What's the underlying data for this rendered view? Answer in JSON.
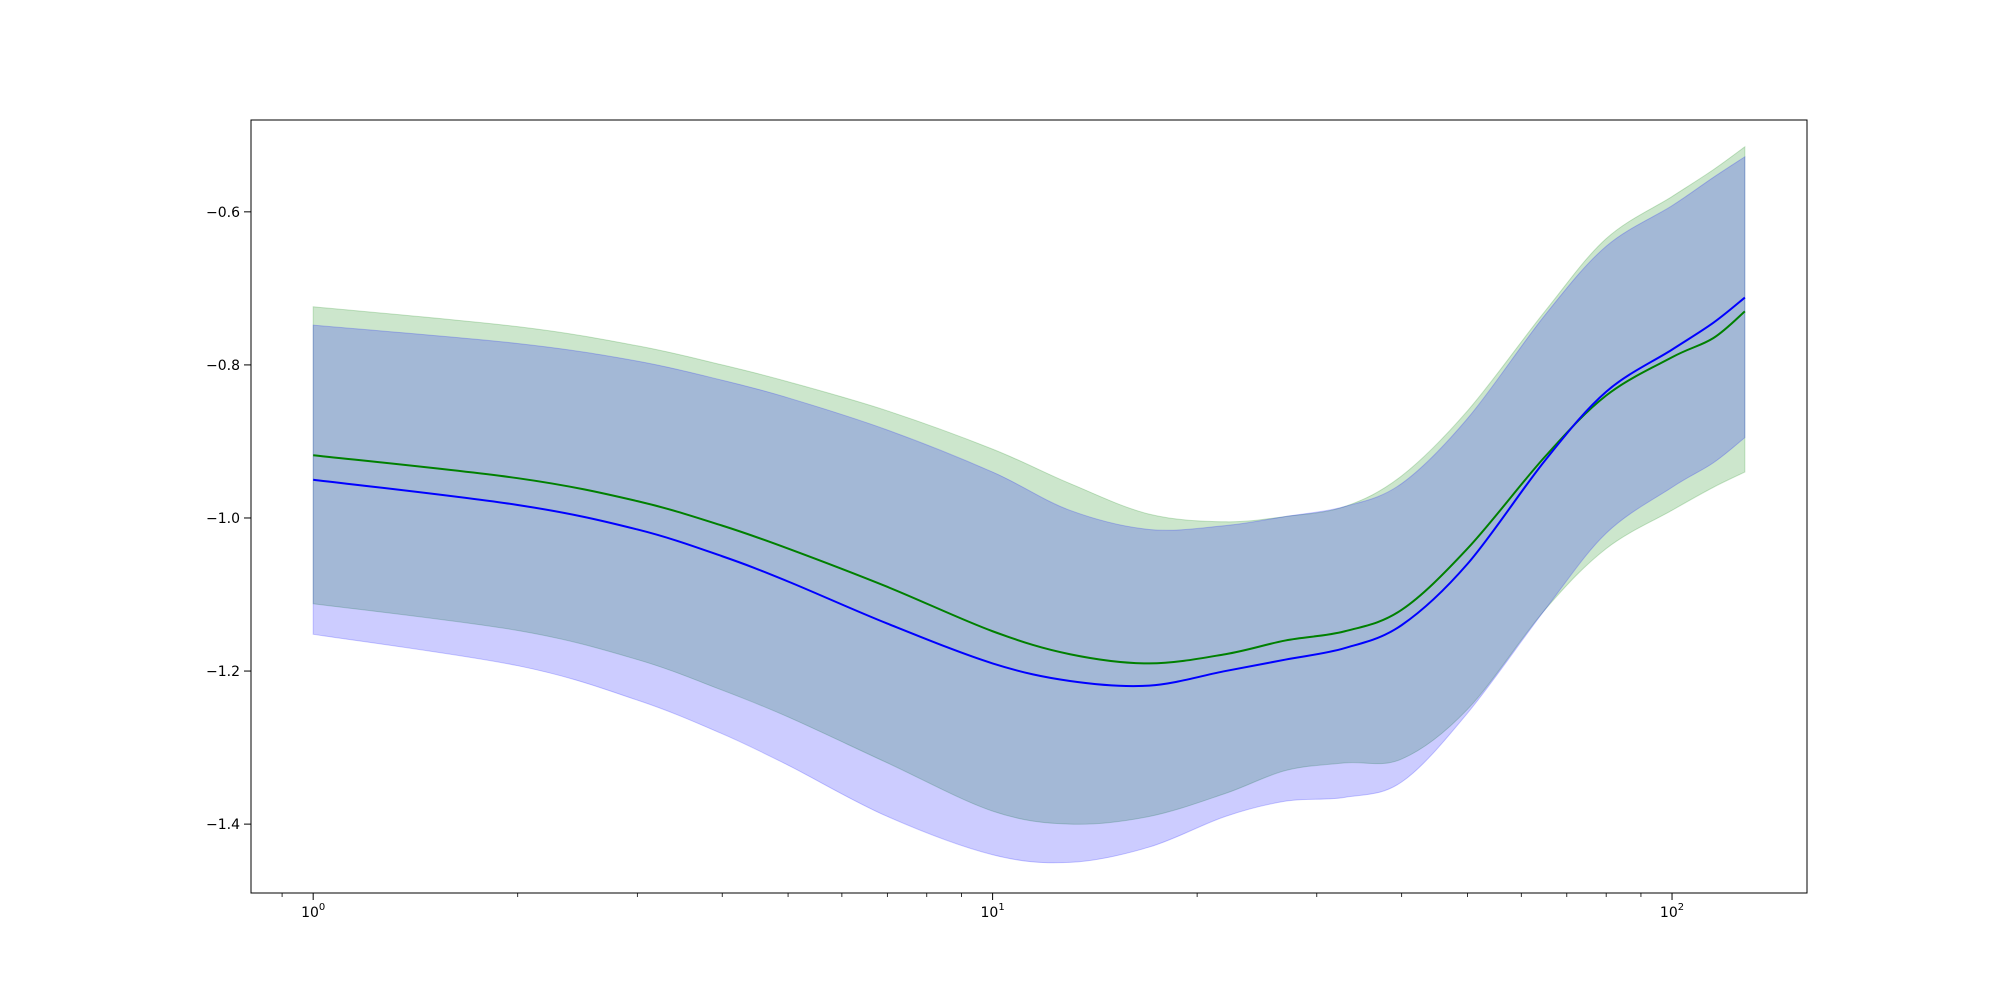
{
  "chart_data": {
    "type": "line",
    "title": "",
    "xlabel": "",
    "ylabel": "",
    "xscale": "log",
    "xlim": [
      0.81,
      158
    ],
    "ylim": [
      -1.49,
      -0.48
    ],
    "grid": false,
    "legend": "none",
    "x_ticks": [
      {
        "value": 1,
        "label": "10^0"
      },
      {
        "value": 10,
        "label": "10^1"
      },
      {
        "value": 100,
        "label": "10^2"
      }
    ],
    "y_ticks": [
      {
        "value": -0.6,
        "label": "−0.6"
      },
      {
        "value": -0.8,
        "label": "−0.8"
      },
      {
        "value": -1.0,
        "label": "−1.0"
      },
      {
        "value": -1.2,
        "label": "−1.2"
      },
      {
        "value": -1.4,
        "label": "−1.4"
      }
    ],
    "x": [
      1,
      2,
      3,
      4,
      5,
      7,
      10,
      13,
      17,
      22,
      27,
      33,
      40,
      50,
      65,
      80,
      100,
      115,
      128
    ],
    "series": [
      {
        "color": "#008000",
        "band_color": "#008000",
        "values": [
          -0.918,
          -0.948,
          -0.978,
          -1.01,
          -1.04,
          -1.09,
          -1.148,
          -1.178,
          -1.19,
          -1.178,
          -1.16,
          -1.148,
          -1.12,
          -1.04,
          -0.92,
          -0.84,
          -0.79,
          -0.765,
          -0.73
        ],
        "upper": [
          -0.724,
          -0.75,
          -0.775,
          -0.8,
          -0.822,
          -0.86,
          -0.91,
          -0.955,
          -0.995,
          -1.005,
          -0.998,
          -0.985,
          -0.945,
          -0.86,
          -0.73,
          -0.635,
          -0.58,
          -0.545,
          -0.515
        ],
        "lower": [
          -1.112,
          -1.147,
          -1.185,
          -1.225,
          -1.26,
          -1.32,
          -1.383,
          -1.4,
          -1.39,
          -1.36,
          -1.33,
          -1.32,
          -1.315,
          -1.25,
          -1.12,
          -1.04,
          -0.99,
          -0.96,
          -0.94
        ]
      },
      {
        "color": "#0000ff",
        "band_color": "#0000ff",
        "values": [
          -0.95,
          -0.983,
          -1.015,
          -1.05,
          -1.083,
          -1.138,
          -1.19,
          -1.213,
          -1.219,
          -1.2,
          -1.185,
          -1.17,
          -1.14,
          -1.06,
          -0.925,
          -0.835,
          -0.78,
          -0.745,
          -0.712
        ],
        "upper": [
          -0.748,
          -0.772,
          -0.795,
          -0.82,
          -0.843,
          -0.885,
          -0.94,
          -0.99,
          -1.015,
          -1.01,
          -0.998,
          -0.985,
          -0.955,
          -0.87,
          -0.735,
          -0.645,
          -0.592,
          -0.555,
          -0.528
        ],
        "lower": [
          -1.152,
          -1.193,
          -1.238,
          -1.282,
          -1.323,
          -1.39,
          -1.44,
          -1.45,
          -1.43,
          -1.39,
          -1.37,
          -1.365,
          -1.345,
          -1.255,
          -1.12,
          -1.02,
          -0.96,
          -0.928,
          -0.895
        ]
      }
    ]
  }
}
